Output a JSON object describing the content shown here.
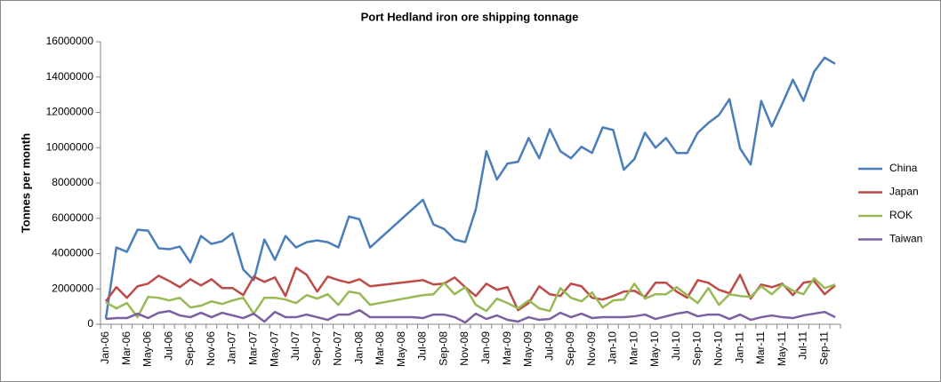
{
  "chart_data": {
    "type": "line",
    "title": "Port Hedland iron ore shipping tonnage",
    "y_label": "Tonnes per month",
    "categories": [
      "Jan-06",
      null,
      "Mar-06",
      null,
      "May-06",
      null,
      "Jul-06",
      null,
      "Sep-06",
      null,
      "Nov-06",
      null,
      "Jan-07",
      null,
      "Mar-07",
      null,
      "May-07",
      null,
      "Jul-07",
      null,
      "Sep-07",
      null,
      "Nov-07",
      null,
      "Jan-08",
      null,
      "Mar-08",
      null,
      "May-08",
      null,
      "Jul-08",
      null,
      "Sep-08",
      null,
      "Nov-08",
      null,
      "Jan-09",
      null,
      "Mar-09",
      null,
      "May-09",
      null,
      "Jul-09",
      null,
      "Sep-09",
      null,
      "Nov-09",
      null,
      "Jan-10",
      null,
      "Mar-10",
      null,
      "May-10",
      null,
      "Jul-10",
      null,
      "Sep-10",
      null,
      "Nov-10",
      null,
      "Jan-11",
      null,
      "Mar-11",
      null,
      "May-11",
      null,
      "Jul-11",
      null,
      "Sep-11",
      null
    ],
    "series": [
      {
        "name": "China",
        "color": "#4a7ebb",
        "values": [
          300000,
          4350000,
          4100000,
          5350000,
          5300000,
          4300000,
          4250000,
          4400000,
          3500000,
          5000000,
          4550000,
          4700000,
          5150000,
          3100000,
          2500000,
          4800000,
          3650000,
          5000000,
          4350000,
          4650000,
          4750000,
          4650000,
          4350000,
          6100000,
          5950000,
          4350000,
          4890000,
          5430000,
          5970000,
          6510000,
          7050000,
          5650000,
          5400000,
          4800000,
          4650000,
          6500000,
          9800000,
          8200000,
          9100000,
          9200000,
          10550000,
          9400000,
          11050000,
          9800000,
          9400000,
          10050000,
          9700000,
          11150000,
          11000000,
          8750000,
          9350000,
          10850000,
          10000000,
          10550000,
          9700000,
          9700000,
          10850000,
          11400000,
          11850000,
          12750000,
          9950000,
          9050000,
          12650000,
          11200000,
          12500000,
          13850000,
          12650000,
          14300000,
          15100000,
          14750000
        ]
      },
      {
        "name": "Japan",
        "color": "#be4b48",
        "values": [
          1300000,
          2100000,
          1500000,
          2150000,
          2300000,
          2750000,
          2450000,
          2100000,
          2550000,
          2200000,
          2550000,
          2050000,
          2050000,
          1650000,
          2700000,
          2400000,
          2650000,
          1600000,
          3200000,
          2800000,
          1850000,
          2700000,
          2500000,
          2350000,
          2550000,
          2150000,
          2220000,
          2290000,
          2360000,
          2430000,
          2500000,
          2250000,
          2300000,
          2650000,
          2100000,
          1600000,
          2300000,
          1950000,
          2100000,
          800000,
          1200000,
          2150000,
          1700000,
          1600000,
          2300000,
          2150000,
          1500000,
          1400000,
          1600000,
          1850000,
          1900000,
          1550000,
          2350000,
          2350000,
          1850000,
          1500000,
          2500000,
          2350000,
          1950000,
          1750000,
          2800000,
          1450000,
          2250000,
          2100000,
          2300000,
          1650000,
          2350000,
          2450000,
          1700000,
          2200000
        ]
      },
      {
        "name": "ROK",
        "color": "#98b954",
        "values": [
          1250000,
          900000,
          1200000,
          400000,
          1550000,
          1500000,
          1350000,
          1500000,
          950000,
          1050000,
          1300000,
          1150000,
          1350000,
          1500000,
          600000,
          1500000,
          1500000,
          1400000,
          1200000,
          1650000,
          1450000,
          1700000,
          1100000,
          1850000,
          1750000,
          1100000,
          1210000,
          1320000,
          1430000,
          1540000,
          1650000,
          1700000,
          2350000,
          1700000,
          2100000,
          1100000,
          750000,
          1450000,
          1200000,
          900000,
          1350000,
          900000,
          750000,
          2050000,
          1500000,
          1300000,
          1800000,
          950000,
          1350000,
          1400000,
          2300000,
          1450000,
          1700000,
          1700000,
          2100000,
          1650000,
          1200000,
          2050000,
          1100000,
          1700000,
          1600000,
          1550000,
          2150000,
          1700000,
          2250000,
          1900000,
          1700000,
          2600000,
          2050000,
          2250000
        ]
      },
      {
        "name": "Taiwan",
        "color": "#7d60a0",
        "values": [
          300000,
          350000,
          350000,
          600000,
          350000,
          650000,
          750000,
          500000,
          400000,
          650000,
          400000,
          650000,
          500000,
          350000,
          600000,
          150000,
          700000,
          400000,
          400000,
          550000,
          400000,
          250000,
          550000,
          550000,
          800000,
          400000,
          400000,
          400000,
          400000,
          400000,
          350000,
          550000,
          550000,
          400000,
          100000,
          600000,
          300000,
          500000,
          250000,
          150000,
          400000,
          250000,
          300000,
          650000,
          400000,
          600000,
          350000,
          400000,
          400000,
          400000,
          450000,
          550000,
          300000,
          450000,
          600000,
          700000,
          450000,
          550000,
          550000,
          300000,
          550000,
          250000,
          400000,
          500000,
          400000,
          350000,
          500000,
          600000,
          700000,
          400000
        ]
      }
    ],
    "ylim": [
      0,
      16000000
    ],
    "yticks": [
      0,
      2000000,
      4000000,
      6000000,
      8000000,
      10000000,
      12000000,
      14000000,
      16000000
    ],
    "legend": "right"
  }
}
